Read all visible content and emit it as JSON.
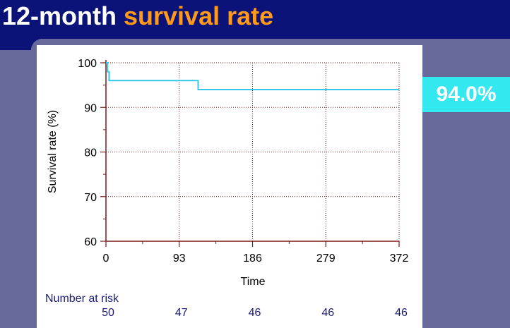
{
  "title": {
    "part1": "12-month ",
    "part2": "survival rate"
  },
  "badge": "94.0%",
  "colors": {
    "header_bg": "#0c1378",
    "background": "#66699a",
    "title_accent": "#ff9a1a",
    "curve": "#33c8e8",
    "axis": "#7a1a1a",
    "badge_bg": "#33e8ee",
    "risk_text": "#1a1a7a"
  },
  "chart_data": {
    "type": "line",
    "step": true,
    "xlabel": "Time",
    "ylabel": "Survival rate (%)",
    "xlim": [
      0,
      372
    ],
    "ylim": [
      60,
      100
    ],
    "x_ticks": [
      0,
      93,
      186,
      279,
      372
    ],
    "y_ticks": [
      60,
      70,
      80,
      90,
      100
    ],
    "grid": {
      "x": true,
      "y": true
    },
    "series": [
      {
        "x": [
          0,
          2,
          2,
          4,
          4,
          7,
          7,
          117,
          117,
          372
        ],
        "y": [
          100,
          100,
          98,
          98,
          96,
          96,
          96,
          96,
          94,
          94
        ]
      }
    ],
    "risk_table": {
      "label": "Number at risk",
      "x": [
        0,
        93,
        186,
        279,
        372
      ],
      "values": [
        "50",
        "47",
        "46",
        "46",
        "46"
      ]
    }
  }
}
